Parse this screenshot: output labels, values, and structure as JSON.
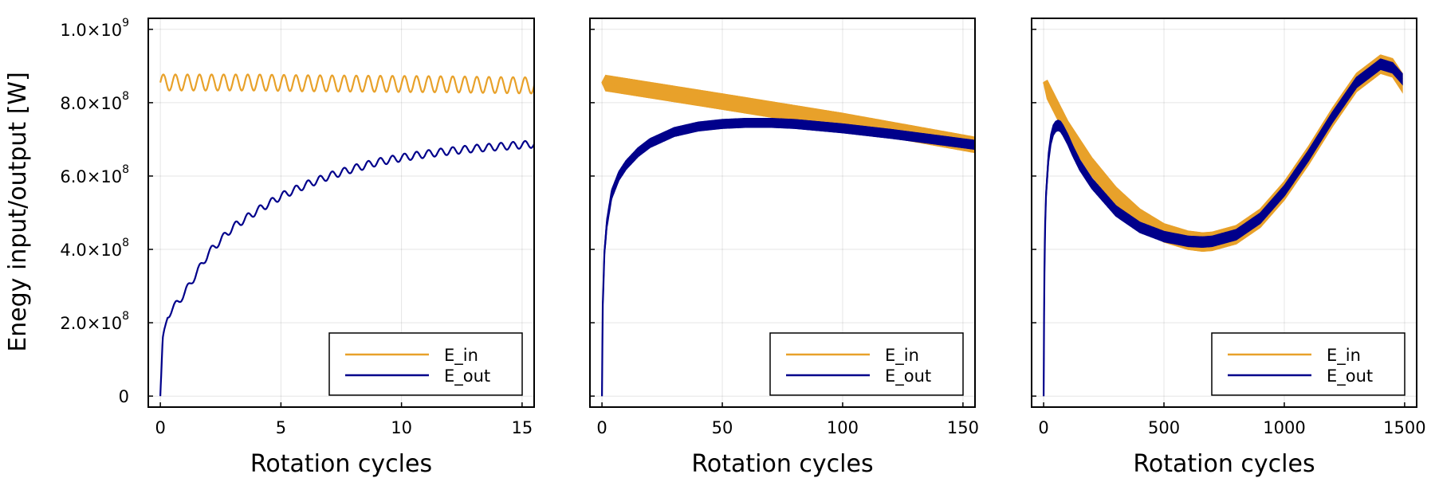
{
  "chart_data": [
    {
      "type": "line",
      "xlabel": "Rotation cycles",
      "ylabel": "Enegy input/output [W]",
      "xlim": [
        -0.5,
        15.5
      ],
      "ylim": [
        -30000000.0,
        1030000000.0
      ],
      "xticks": [
        0,
        5,
        10,
        15
      ],
      "xtick_labels": [
        "0",
        "5",
        "10",
        "15"
      ],
      "yticks": [
        0,
        200000000.0,
        400000000.0,
        600000000.0,
        800000000.0,
        1000000000.0
      ],
      "ytick_labels": [
        {
          "mantissa": "0",
          "exponent": ""
        },
        {
          "mantissa": "2.0×10",
          "exponent": "8"
        },
        {
          "mantissa": "4.0×10",
          "exponent": "8"
        },
        {
          "mantissa": "6.0×10",
          "exponent": "8"
        },
        {
          "mantissa": "8.0×10",
          "exponent": "8"
        },
        {
          "mantissa": "1.0×10",
          "exponent": "9"
        }
      ],
      "grid": true,
      "legend_position": "bottom-right",
      "series": [
        {
          "name": "E_in",
          "color": "#e8a12a",
          "band_width": 0,
          "osc_amp": 22000000.0,
          "osc_cycles_per_unit": 2,
          "x": [
            0,
            2,
            4,
            6,
            8,
            10,
            12,
            14,
            15.5
          ],
          "y": [
            855000000.0,
            855000000.0,
            855000000.0,
            853000000.0,
            852000000.0,
            851000000.0,
            850000000.0,
            848000000.0,
            847000000.0
          ]
        },
        {
          "name": "E_out",
          "color": "#00008b",
          "band_width": 0,
          "osc_amp": 10000000.0,
          "osc_cycles_per_unit": 2,
          "x": [
            0,
            0.1,
            0.3,
            0.6,
            1,
            1.5,
            2,
            3,
            4,
            5,
            6,
            7,
            8,
            9,
            10,
            11,
            12,
            13,
            14,
            15,
            15.5
          ],
          "y": [
            0,
            150000000.0,
            220000000.0,
            245000000.0,
            280000000.0,
            335000000.0,
            390000000.0,
            460000000.0,
            505000000.0,
            545000000.0,
            575000000.0,
            600000000.0,
            620000000.0,
            638000000.0,
            650000000.0,
            660000000.0,
            668000000.0,
            675000000.0,
            680000000.0,
            685000000.0,
            687000000.0
          ]
        }
      ]
    },
    {
      "type": "line",
      "xlabel": "Rotation cycles",
      "ylabel": "",
      "xlim": [
        -5,
        155
      ],
      "ylim": [
        -30000000.0,
        1030000000.0
      ],
      "xticks": [
        0,
        50,
        100,
        150
      ],
      "xtick_labels": [
        "0",
        "50",
        "100",
        "150"
      ],
      "yticks": [
        0,
        200000000.0,
        400000000.0,
        600000000.0,
        800000000.0,
        1000000000.0
      ],
      "ytick_labels": [],
      "grid": true,
      "legend_position": "bottom-right",
      "series": [
        {
          "name": "E_in",
          "color": "#e8a12a",
          "band_width": 42000000.0,
          "osc_amp": 0,
          "osc_cycles_per_unit": 0,
          "x": [
            0,
            50,
            100,
            155
          ],
          "y": [
            855000000.0,
            803000000.0,
            750000000.0,
            685000000.0
          ]
        },
        {
          "name": "E_out",
          "color": "#00008b",
          "band_width": 24000000.0,
          "osc_amp": 0,
          "osc_cycles_per_unit": 0,
          "x": [
            0,
            0.3,
            1,
            2,
            4,
            7,
            10,
            15,
            20,
            25,
            30,
            40,
            50,
            60,
            70,
            80,
            100,
            120,
            140,
            155
          ],
          "y": [
            0,
            240000000.0,
            390000000.0,
            470000000.0,
            550000000.0,
            600000000.0,
            630000000.0,
            665000000.0,
            690000000.0,
            705000000.0,
            720000000.0,
            735000000.0,
            742000000.0,
            745000000.0,
            745000000.0,
            742000000.0,
            730000000.0,
            715000000.0,
            698000000.0,
            685000000.0
          ]
        }
      ]
    },
    {
      "type": "line",
      "xlabel": "Rotation cycles",
      "ylabel": "",
      "xlim": [
        -50,
        1550
      ],
      "ylim": [
        -30000000.0,
        1030000000.0
      ],
      "xticks": [
        0,
        500,
        1000,
        1500
      ],
      "xtick_labels": [
        "0",
        "500",
        "1000",
        "1500"
      ],
      "yticks": [
        0,
        200000000.0,
        400000000.0,
        600000000.0,
        800000000.0,
        1000000000.0
      ],
      "ytick_labels": [],
      "grid": true,
      "legend_position": "bottom-right",
      "series": [
        {
          "name": "E_in",
          "color": "#e8a12a",
          "band_width": 50000000.0,
          "osc_amp": 0,
          "osc_cycles_per_unit": 0,
          "x": [
            0,
            50,
            100,
            150,
            200,
            300,
            400,
            500,
            600,
            660,
            700,
            800,
            900,
            1000,
            1100,
            1200,
            1300,
            1400,
            1450,
            1490
          ],
          "y": [
            855000000.0,
            790000000.0,
            725000000.0,
            675000000.0,
            625000000.0,
            545000000.0,
            485000000.0,
            445000000.0,
            425000000.0,
            420000000.0,
            422000000.0,
            440000000.0,
            485000000.0,
            560000000.0,
            655000000.0,
            760000000.0,
            855000000.0,
            905000000.0,
            895000000.0,
            855000000.0
          ]
        },
        {
          "name": "E_out",
          "color": "#00008b",
          "band_width": 28000000.0,
          "osc_amp": 0,
          "osc_cycles_per_unit": 0,
          "x": [
            0,
            1,
            3,
            6,
            10,
            20,
            30,
            40,
            50,
            60,
            70,
            80,
            100,
            120,
            150,
            200,
            300,
            400,
            500,
            600,
            660,
            700,
            800,
            900,
            1000,
            1100,
            1200,
            1300,
            1400,
            1450,
            1490
          ],
          "y": [
            0,
            150000000.0,
            320000000.0,
            460000000.0,
            550000000.0,
            650000000.0,
            700000000.0,
            725000000.0,
            735000000.0,
            738000000.0,
            735000000.0,
            725000000.0,
            700000000.0,
            670000000.0,
            630000000.0,
            580000000.0,
            505000000.0,
            460000000.0,
            435000000.0,
            422000000.0,
            420000000.0,
            422000000.0,
            440000000.0,
            485000000.0,
            560000000.0,
            655000000.0,
            760000000.0,
            855000000.0,
            905000000.0,
            895000000.0,
            865000000.0
          ]
        }
      ]
    }
  ]
}
